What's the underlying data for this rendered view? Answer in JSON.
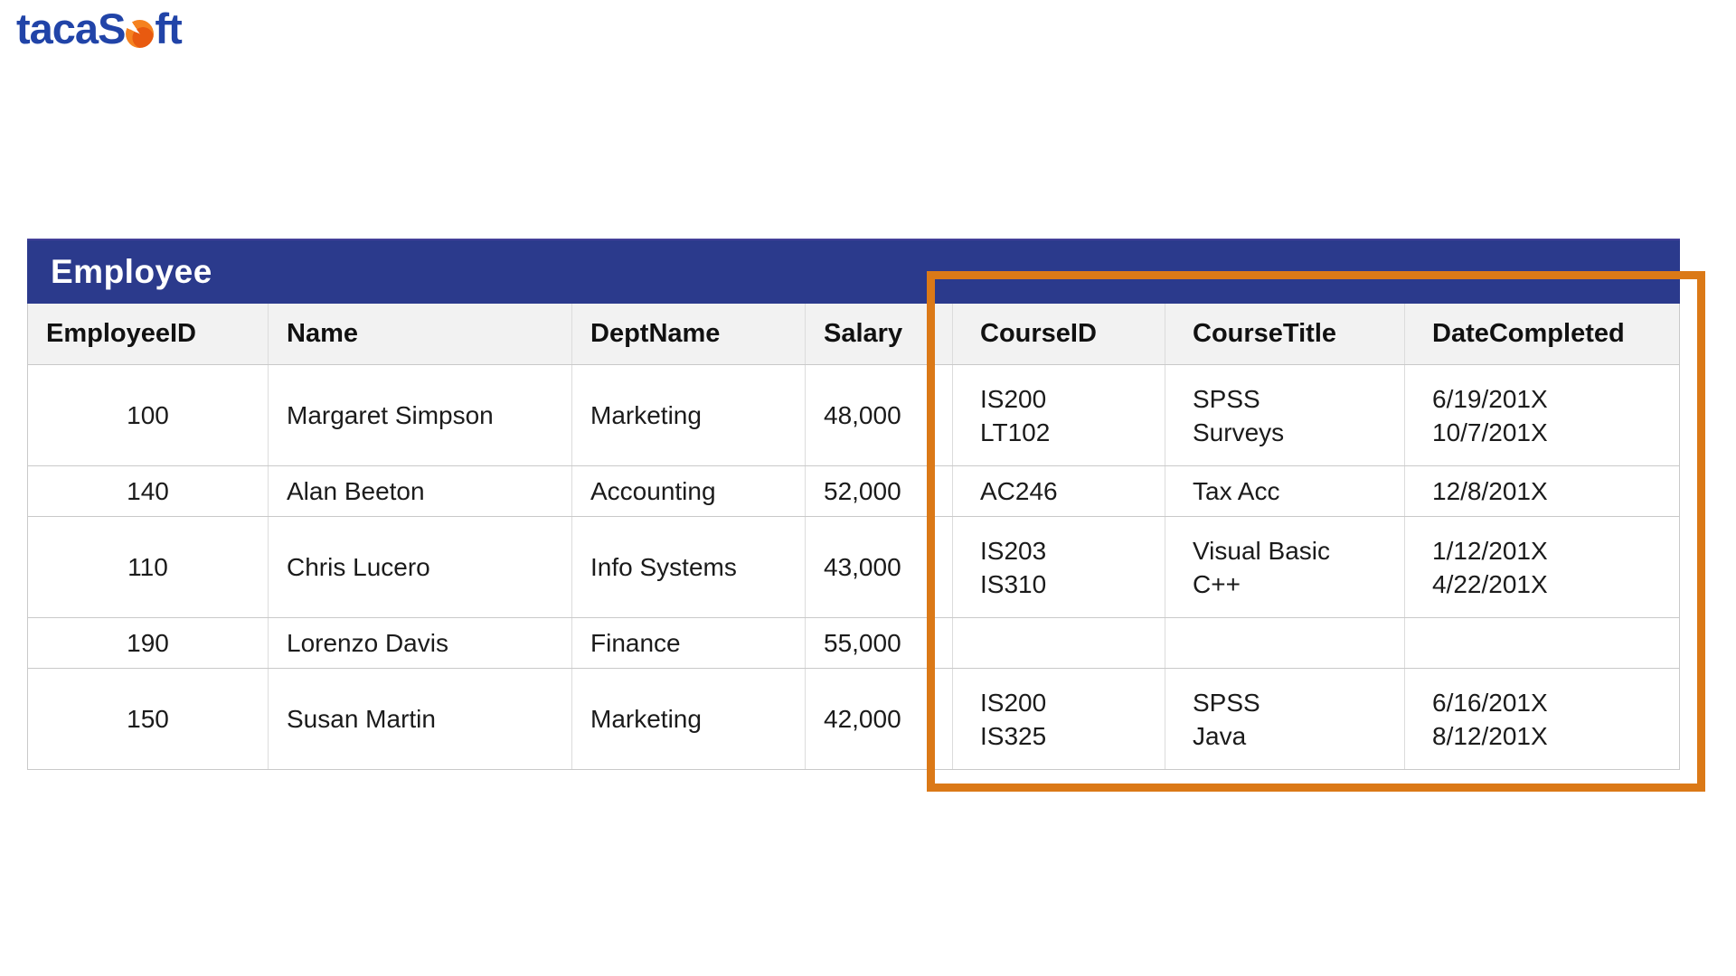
{
  "logo": {
    "text_main": "tacaS",
    "text_tail": "ft"
  },
  "table": {
    "title": "Employee",
    "columns": [
      "EmployeeID",
      "Name",
      "DeptName",
      "Salary",
      "CourseID",
      "CourseTitle",
      "DateCompleted"
    ],
    "rows": [
      {
        "employee_id": "100",
        "name": "Margaret Simpson",
        "dept_name": "Marketing",
        "salary": "48,000",
        "courses": [
          {
            "id": "IS200",
            "title": "SPSS",
            "date": "6/19/201X"
          },
          {
            "id": "LT102",
            "title": "Surveys",
            "date": "10/7/201X"
          }
        ]
      },
      {
        "employee_id": "140",
        "name": "Alan Beeton",
        "dept_name": "Accounting",
        "salary": "52,000",
        "courses": [
          {
            "id": "AC246",
            "title": "Tax Acc",
            "date": "12/8/201X"
          }
        ]
      },
      {
        "employee_id": "110",
        "name": "Chris Lucero",
        "dept_name": "Info Systems",
        "salary": "43,000",
        "courses": [
          {
            "id": "IS203",
            "title": "Visual Basic",
            "date": "1/12/201X"
          },
          {
            "id": "IS310",
            "title": "C++",
            "date": "4/22/201X"
          }
        ]
      },
      {
        "employee_id": "190",
        "name": "Lorenzo Davis",
        "dept_name": "Finance",
        "salary": "55,000",
        "courses": []
      },
      {
        "employee_id": "150",
        "name": "Susan Martin",
        "dept_name": "Marketing",
        "salary": "42,000",
        "courses": [
          {
            "id": "IS200",
            "title": "SPSS",
            "date": "6/16/201X"
          },
          {
            "id": "IS325",
            "title": "Java",
            "date": "8/12/201X"
          }
        ]
      }
    ]
  },
  "colors": {
    "table_header_blue": "#2b3a8c",
    "highlight_orange": "#db7917",
    "logo_blue": "#2144a8",
    "logo_orange": "#f58220",
    "header_row_gray": "#f2f2f2"
  }
}
